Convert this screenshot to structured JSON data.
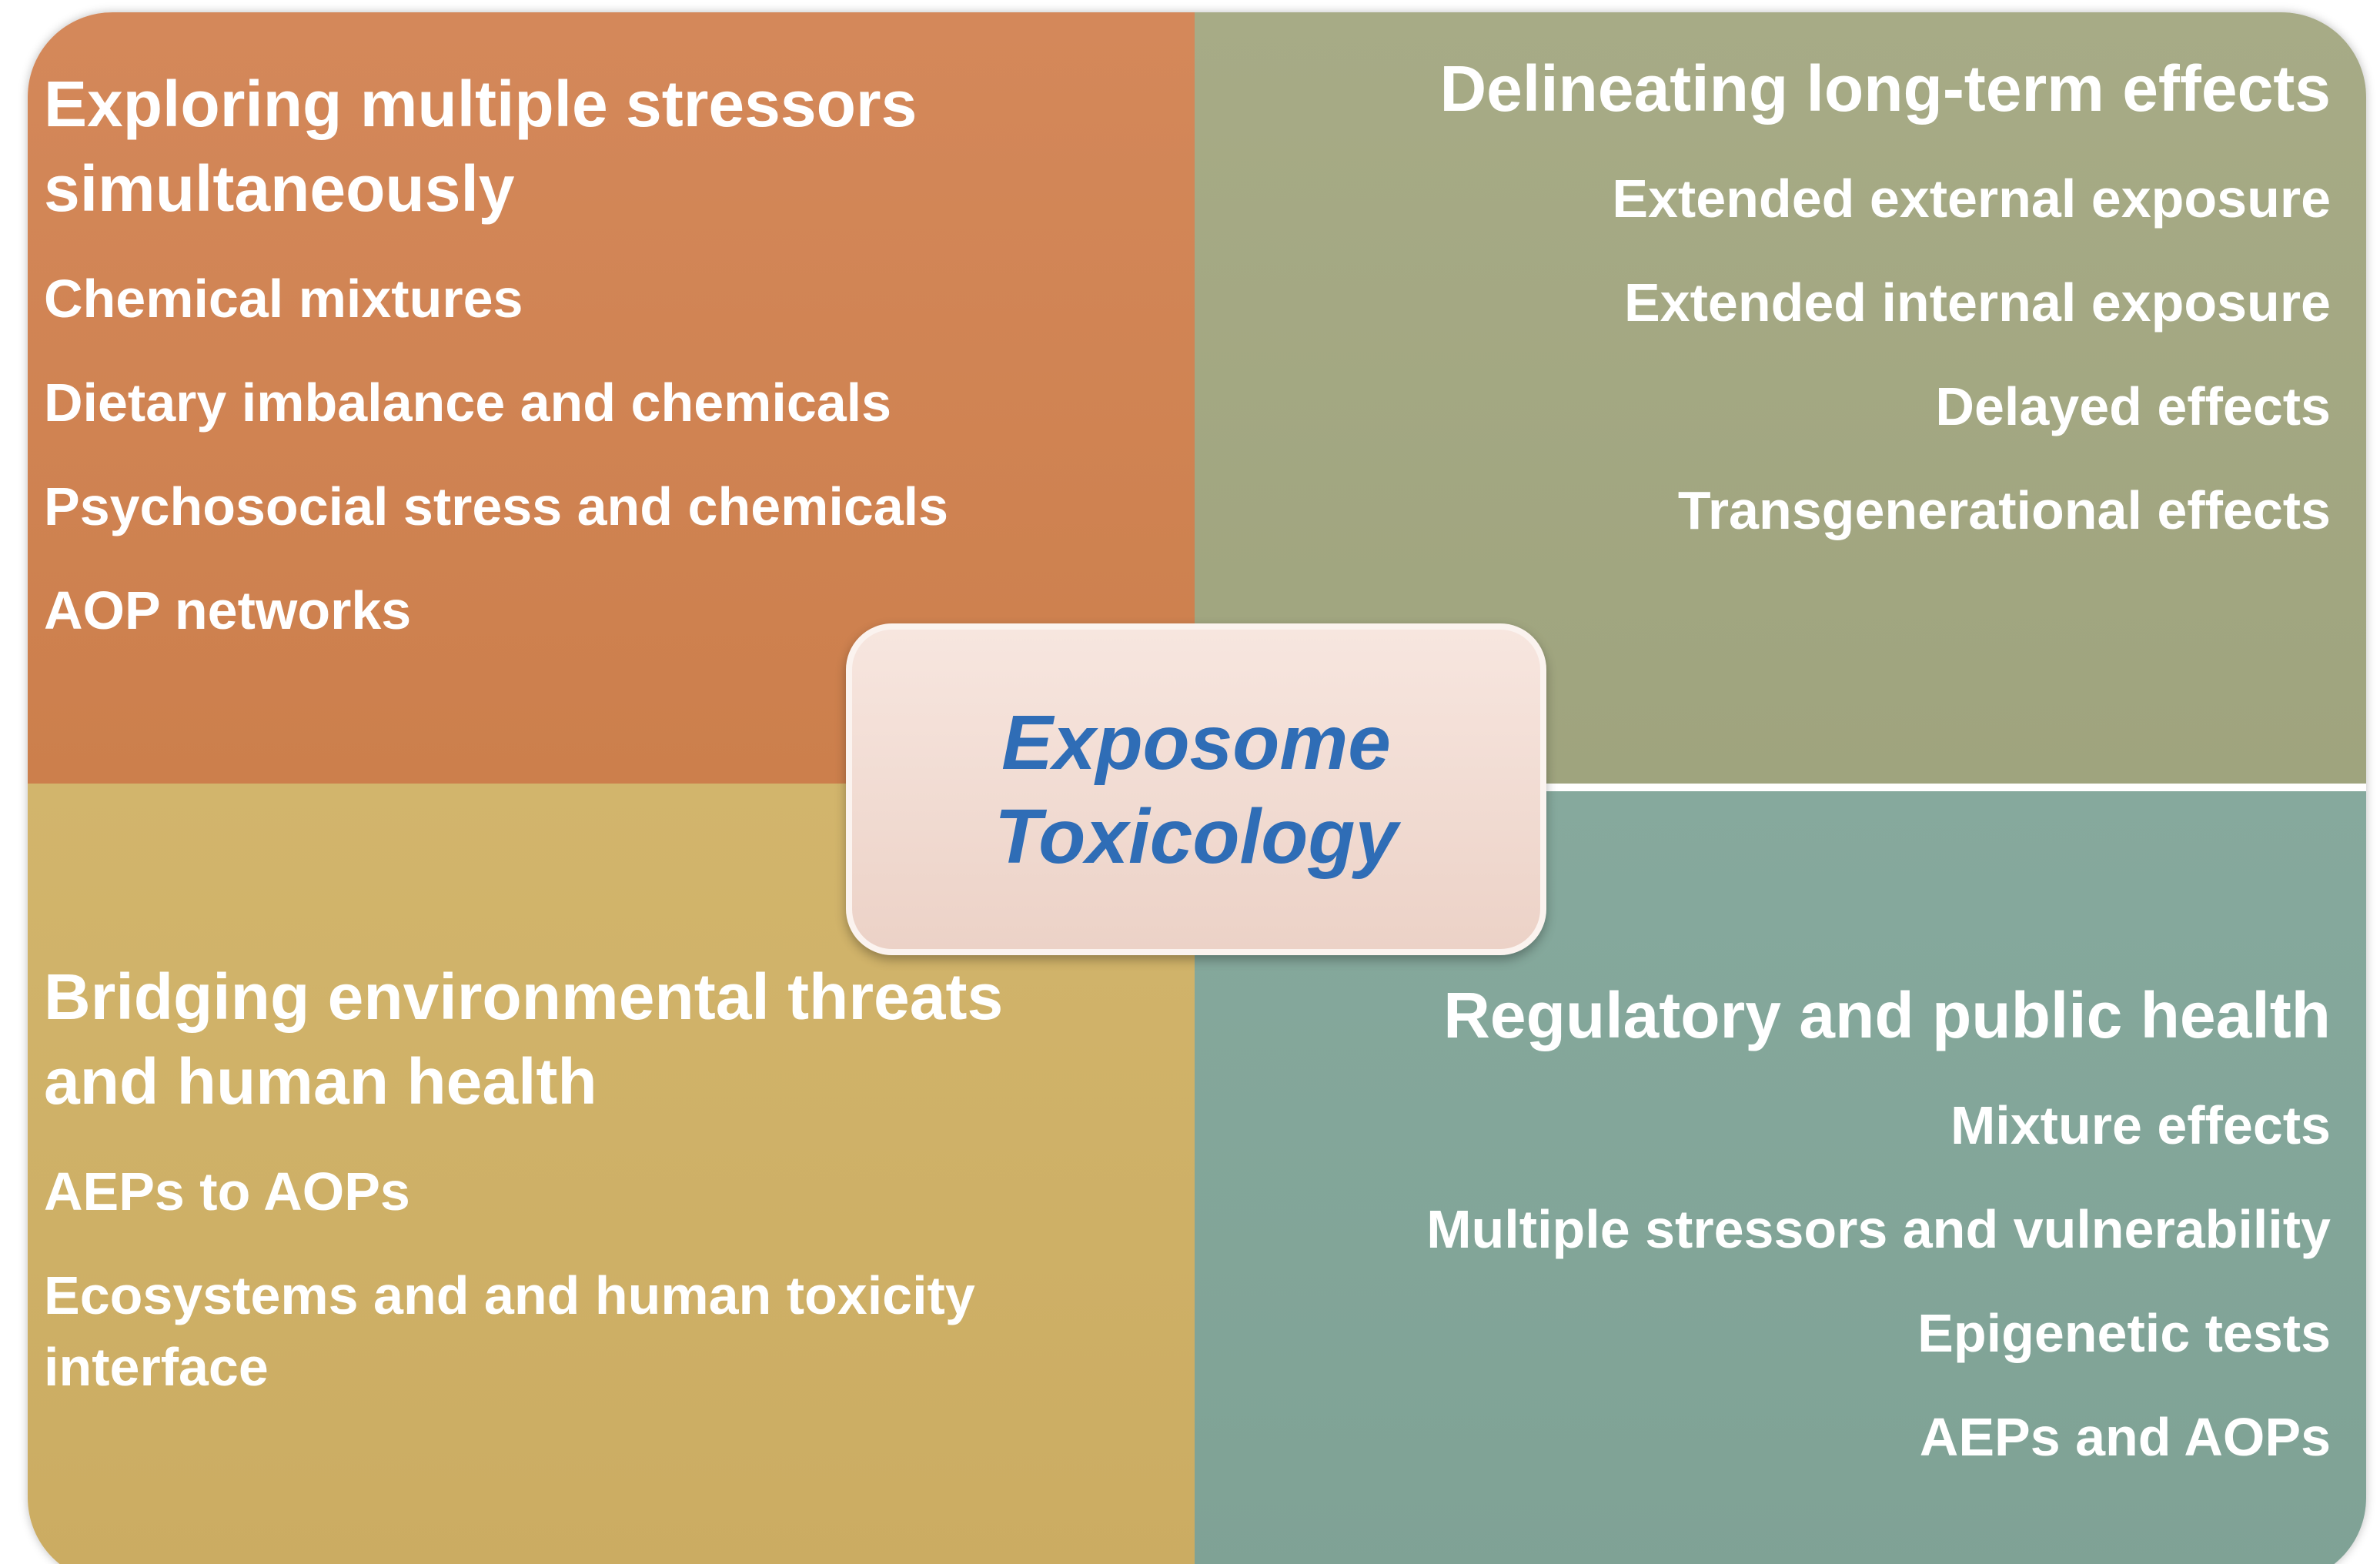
{
  "center": {
    "lines": [
      "Exposome",
      "Toxicology"
    ]
  },
  "quadrants": [
    {
      "title": "Exploring multiple stressors simultaneously",
      "items": [
        "Chemical mixtures",
        "Dietary imbalance and chemicals",
        "Psychosocial stress and chemicals",
        "AOP networks"
      ]
    },
    {
      "title": "Delineating long-term effects",
      "items": [
        "Extended external exposure",
        "Extended internal exposure",
        "Delayed effects",
        "Transgenerational effects"
      ]
    },
    {
      "title": "Bridging environmental threats and human health",
      "items": [
        "AEPs to AOPs",
        "Ecosystems and and human toxicity interface"
      ]
    },
    {
      "title": "Regulatory and public health",
      "items": [
        "Mixture effects",
        "Multiple stressors and vulnerability",
        "Epigenetic tests",
        "AEPs and AOPs"
      ]
    }
  ]
}
